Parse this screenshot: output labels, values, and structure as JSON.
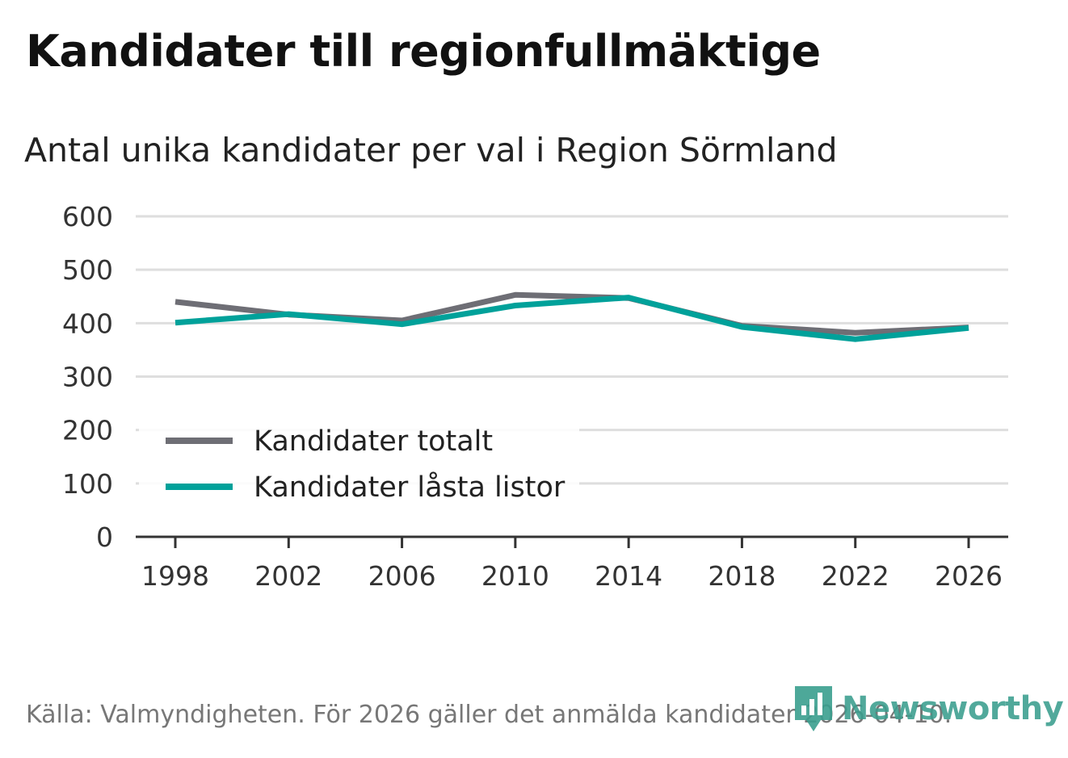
{
  "title": "Kandidater till regionfullmäktige",
  "subtitle": "Antal unika kandidater per val i Region Sörmland",
  "source": "Källa: Valmyndigheten. För 2026 gäller det anmälda kandidater 2026-04-10.",
  "brand": {
    "name": "Newsworthy",
    "icon": "newsworthy-logo-icon",
    "color": "#3a9e8e"
  },
  "chart_data": {
    "type": "line",
    "title": "Kandidater till regionfullmäktige",
    "subtitle": "Antal unika kandidater per val i Region Sörmland",
    "xlabel": "",
    "ylabel": "",
    "categories": [
      "1998",
      "2002",
      "2006",
      "2010",
      "2014",
      "2018",
      "2022",
      "2026"
    ],
    "ylim": [
      0,
      600
    ],
    "yticks": [
      0,
      100,
      200,
      300,
      400,
      500,
      600
    ],
    "grid": true,
    "legend_position": "bottom-left",
    "series": [
      {
        "name": "Kandidater totalt",
        "color": "#6e6e75",
        "values": [
          440,
          416,
          405,
          453,
          447,
          395,
          382,
          392
        ]
      },
      {
        "name": "Kandidater låsta listor",
        "color": "#00a19a",
        "values": [
          401,
          417,
          398,
          433,
          448,
          393,
          370,
          391
        ]
      }
    ]
  }
}
